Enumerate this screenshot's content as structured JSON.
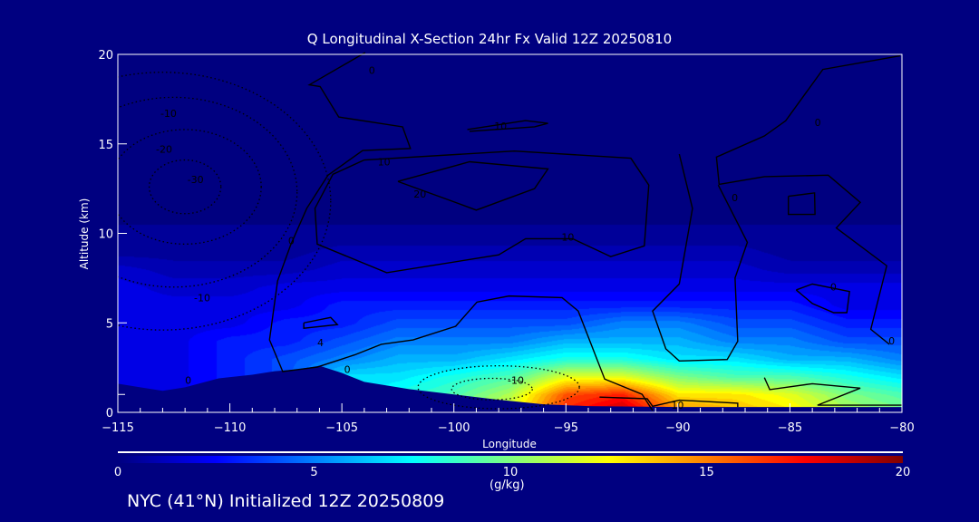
{
  "title": "Q Longitudinal X-Section 24hr  Fx Valid 12Z 20250810",
  "footer": "NYC (41°N) Initialized 12Z 20250809",
  "chart_data": {
    "type": "heatmap",
    "title": "Q Longitudinal X-Section 24hr  Fx Valid 12Z 20250810",
    "xlabel": "Longitude",
    "ylabel": "Altitude (km)",
    "xlim": [
      -115,
      -80
    ],
    "ylim": [
      0,
      20
    ],
    "xticks": [
      -115,
      -110,
      -105,
      -100,
      -95,
      -90,
      -85,
      -80
    ],
    "xtick_labels": [
      "−115",
      "−110",
      "−105",
      "−100",
      "−95",
      "−90",
      "−85",
      "−80"
    ],
    "yticks": [
      0,
      5,
      10,
      15,
      20
    ],
    "ytick_labels": [
      "0",
      "5",
      "10",
      "15",
      "20"
    ],
    "colorbar": {
      "min": 0,
      "max": 20,
      "ticks": [
        "0",
        "5",
        "10",
        "15",
        "20"
      ],
      "units": "(g/kg)",
      "colors": [
        "#000080",
        "#0000ff",
        "#00ffff",
        "#ffff00",
        "#ff0000",
        "#800000"
      ]
    },
    "grid_lon": [
      -115,
      -112.5,
      -110,
      -107.5,
      -105,
      -102.5,
      -100,
      -97.5,
      -95,
      -92.5,
      -90,
      -87.5,
      -85,
      -82.5,
      -80
    ],
    "grid_alt": [
      0,
      1,
      2,
      3,
      4,
      5,
      6,
      7,
      8,
      9,
      10
    ],
    "q_values": [
      [
        2,
        2,
        3,
        4,
        6,
        8,
        10,
        12,
        17,
        19,
        15,
        14,
        13,
        11,
        10
      ],
      [
        2,
        2,
        3,
        4,
        6,
        8,
        9,
        11,
        16,
        17,
        13,
        13,
        12,
        10,
        9
      ],
      [
        2,
        2,
        3,
        4,
        7,
        7,
        8,
        9,
        12,
        12,
        10,
        9,
        9,
        8,
        7
      ],
      [
        2,
        2,
        3,
        4,
        5,
        6,
        6,
        7,
        8,
        8,
        7,
        7,
        6,
        6,
        5
      ],
      [
        2,
        2,
        3,
        3,
        4,
        5,
        5,
        5,
        6,
        6,
        6,
        5,
        5,
        4,
        4
      ],
      [
        2,
        2,
        2,
        3,
        3,
        4,
        4,
        4,
        4,
        5,
        5,
        4,
        4,
        3,
        3
      ],
      [
        2,
        2,
        2,
        2,
        3,
        3,
        3,
        3,
        3,
        3,
        3,
        3,
        3,
        2,
        2
      ],
      [
        2,
        1.5,
        1.5,
        2,
        2,
        2,
        2,
        2,
        2,
        2,
        2,
        2,
        2,
        2,
        2
      ],
      [
        1.5,
        1,
        1,
        1,
        1.5,
        1.5,
        1.5,
        1.5,
        1.5,
        1.5,
        1.5,
        1.5,
        1,
        1,
        1
      ],
      [
        0.5,
        0.5,
        0.5,
        0.5,
        1,
        1,
        1,
        1,
        1,
        1,
        1,
        1,
        0.5,
        0.5,
        0.5
      ],
      [
        0.3,
        0.3,
        0.3,
        0.3,
        0.3,
        0.3,
        0.3,
        0.3,
        0.3,
        0.3,
        0.3,
        0.3,
        0.3,
        0.3,
        0.3
      ]
    ],
    "terrain": [
      [
        -115,
        1.6
      ],
      [
        -114,
        1.4
      ],
      [
        -113,
        1.2
      ],
      [
        -112,
        1.4
      ],
      [
        -110.5,
        1.9
      ],
      [
        -109,
        2.1
      ],
      [
        -108,
        2.3
      ],
      [
        -107,
        2.4
      ],
      [
        -106,
        2.6
      ],
      [
        -105,
        2.2
      ],
      [
        -104,
        1.7
      ],
      [
        -102,
        1.3
      ],
      [
        -100,
        1.0
      ],
      [
        -98,
        0.7
      ],
      [
        -96,
        0.45
      ],
      [
        -94,
        0.35
      ],
      [
        -90,
        0.3
      ],
      [
        -85,
        0.3
      ],
      [
        -80,
        0.3
      ]
    ],
    "contours_solid": [
      [
        [
          -102.5,
          12.9
        ],
        [
          -99.3,
          14.0
        ],
        [
          -95.8,
          13.6
        ],
        [
          -96.4,
          12.5
        ],
        [
          -99,
          11.3
        ],
        [
          -100.3,
          11.9
        ],
        [
          -102.5,
          12.9
        ]
      ],
      [
        [
          -104.0,
          14.1
        ],
        [
          -97.3,
          14.6
        ],
        [
          -92.1,
          14.2
        ],
        [
          -91.3,
          12.7
        ],
        [
          -91.5,
          9.3
        ],
        [
          -93.0,
          8.7
        ],
        [
          -94.7,
          9.7
        ],
        [
          -96.8,
          9.7
        ],
        [
          -98.0,
          8.8
        ],
        [
          -103.0,
          7.8
        ],
        [
          -106.1,
          9.4
        ],
        [
          -106.2,
          11.4
        ],
        [
          -105.4,
          13.3
        ],
        [
          -104.0,
          14.1
        ]
      ],
      [
        [
          -99.4,
          15.8
        ],
        [
          -96.8,
          16.3
        ],
        [
          -95.8,
          16.15
        ],
        [
          -96.4,
          15.95
        ],
        [
          -99.3,
          15.7
        ]
      ],
      [
        [
          -103.96,
          20.1
        ],
        [
          -106.45,
          18.3
        ],
        [
          -105.97,
          18.2
        ],
        [
          -105.14,
          16.5
        ],
        [
          -102.29,
          15.95
        ],
        [
          -101.94,
          14.74
        ],
        [
          -104.07,
          14.63
        ],
        [
          -105.62,
          13.25
        ],
        [
          -106.57,
          11.39
        ],
        [
          -107.28,
          9.37
        ],
        [
          -107.87,
          7.34
        ],
        [
          -108.23,
          4.05
        ],
        [
          -107.64,
          2.28
        ],
        [
          -106.1,
          2.53
        ],
        [
          -104.43,
          3.21
        ],
        [
          -103.24,
          3.8
        ],
        [
          -101.82,
          4.05
        ],
        [
          -99.92,
          4.81
        ],
        [
          -98.97,
          6.16
        ],
        [
          -97.54,
          6.5
        ],
        [
          -95.17,
          6.41
        ],
        [
          -94.45,
          5.66
        ],
        [
          -93.27,
          1.86
        ],
        [
          -91.6,
          1.01
        ],
        [
          -91.13,
          0.1
        ]
      ],
      [
        [
          -89.94,
          14.43
        ],
        [
          -89.35,
          11.39
        ],
        [
          -89.94,
          7.17
        ],
        [
          -91.13,
          5.66
        ],
        [
          -90.54,
          3.55
        ],
        [
          -89.94,
          2.87
        ],
        [
          -87.8,
          2.95
        ],
        [
          -87.33,
          3.97
        ],
        [
          -87.45,
          7.51
        ],
        [
          -86.9,
          9.5
        ],
        [
          -88.2,
          12.7
        ]
      ],
      [
        [
          -80.08,
          19.92
        ],
        [
          -83.53,
          19.16
        ],
        [
          -85.19,
          16.29
        ],
        [
          -86.14,
          15.44
        ],
        [
          -88.28,
          14.26
        ],
        [
          -88.16,
          12.74
        ],
        [
          -86.14,
          13.17
        ],
        [
          -83.29,
          13.25
        ],
        [
          -81.86,
          11.73
        ],
        [
          -82.93,
          10.3
        ],
        [
          -80.68,
          8.19
        ],
        [
          -81.39,
          4.64
        ],
        [
          -80.56,
          3.8
        ]
      ],
      [
        [
          -85.07,
          12.07
        ],
        [
          -83.9,
          12.26
        ],
        [
          -83.88,
          11.06
        ],
        [
          -85.07,
          11.06
        ],
        [
          -85.07,
          12.07
        ]
      ],
      [
        [
          -84.72,
          6.84
        ],
        [
          -84.0,
          7.17
        ],
        [
          -82.34,
          6.75
        ],
        [
          -82.46,
          5.57
        ],
        [
          -83.05,
          5.57
        ],
        [
          -84.0,
          6.08
        ],
        [
          -84.72,
          6.84
        ]
      ],
      [
        [
          -86.14,
          1.94
        ],
        [
          -85.9,
          1.27
        ],
        [
          -84.0,
          1.6
        ],
        [
          -81.86,
          1.35
        ],
        [
          -83.77,
          0.4
        ],
        [
          -80,
          0.4
        ]
      ],
      [
        [
          -93.5,
          0.85
        ],
        [
          -91.37,
          0.76
        ],
        [
          -91.13,
          0.34
        ],
        [
          -89.94,
          0.68
        ],
        [
          -87.33,
          0.51
        ],
        [
          -87.33,
          0.3
        ]
      ],
      [
        [
          -106.7,
          5.0
        ],
        [
          -105.5,
          5.3
        ],
        [
          -105.2,
          4.9
        ],
        [
          -106.7,
          4.7
        ],
        [
          -106.7,
          5.0
        ]
      ]
    ],
    "contours_dotted": [
      {
        "center": [
          -112,
          12.6
        ],
        "radii": [
          1.6,
          1.5
        ]
      },
      {
        "center": [
          -112,
          12.6
        ],
        "radii": [
          3.4,
          3.2
        ]
      },
      {
        "center": [
          -112.5,
          12.3
        ],
        "radii": [
          5.5,
          5.3
        ]
      },
      {
        "center": [
          -113,
          11.8
        ],
        "radii": [
          7.5,
          7.2
        ]
      },
      {
        "center": [
          -98,
          1.4
        ],
        "radii": [
          3.6,
          1.2
        ]
      },
      {
        "center": [
          -98.3,
          1.3
        ],
        "radii": [
          1.8,
          0.6
        ]
      }
    ],
    "contour_labels": [
      {
        "text": "0",
        "lon": -103.8,
        "alt": 18.9
      },
      {
        "text": "10",
        "lon": -98.2,
        "alt": 15.8
      },
      {
        "text": "10",
        "lon": -103.4,
        "alt": 13.8
      },
      {
        "text": "20",
        "lon": -101.8,
        "alt": 12.0
      },
      {
        "text": "10",
        "lon": -95.2,
        "alt": 9.6
      },
      {
        "text": "0",
        "lon": -107.4,
        "alt": 9.4
      },
      {
        "text": "-10",
        "lon": -113.1,
        "alt": 16.5
      },
      {
        "text": "-20",
        "lon": -113.3,
        "alt": 14.5
      },
      {
        "text": "-30",
        "lon": -111.9,
        "alt": 12.8
      },
      {
        "text": "-10",
        "lon": -111.6,
        "alt": 6.2
      },
      {
        "text": "4",
        "lon": -106.1,
        "alt": 3.7
      },
      {
        "text": "0",
        "lon": -104.9,
        "alt": 2.2
      },
      {
        "text": "0",
        "lon": -112,
        "alt": 1.6
      },
      {
        "text": "-10",
        "lon": -97.6,
        "alt": 1.6
      },
      {
        "text": "10",
        "lon": -90.3,
        "alt": 0.2
      },
      {
        "text": "0",
        "lon": -87.6,
        "alt": 11.8
      },
      {
        "text": "0",
        "lon": -83.2,
        "alt": 6.8
      },
      {
        "text": "0",
        "lon": -80.6,
        "alt": 3.8
      },
      {
        "text": "0",
        "lon": -83.9,
        "alt": 16.0
      }
    ]
  }
}
